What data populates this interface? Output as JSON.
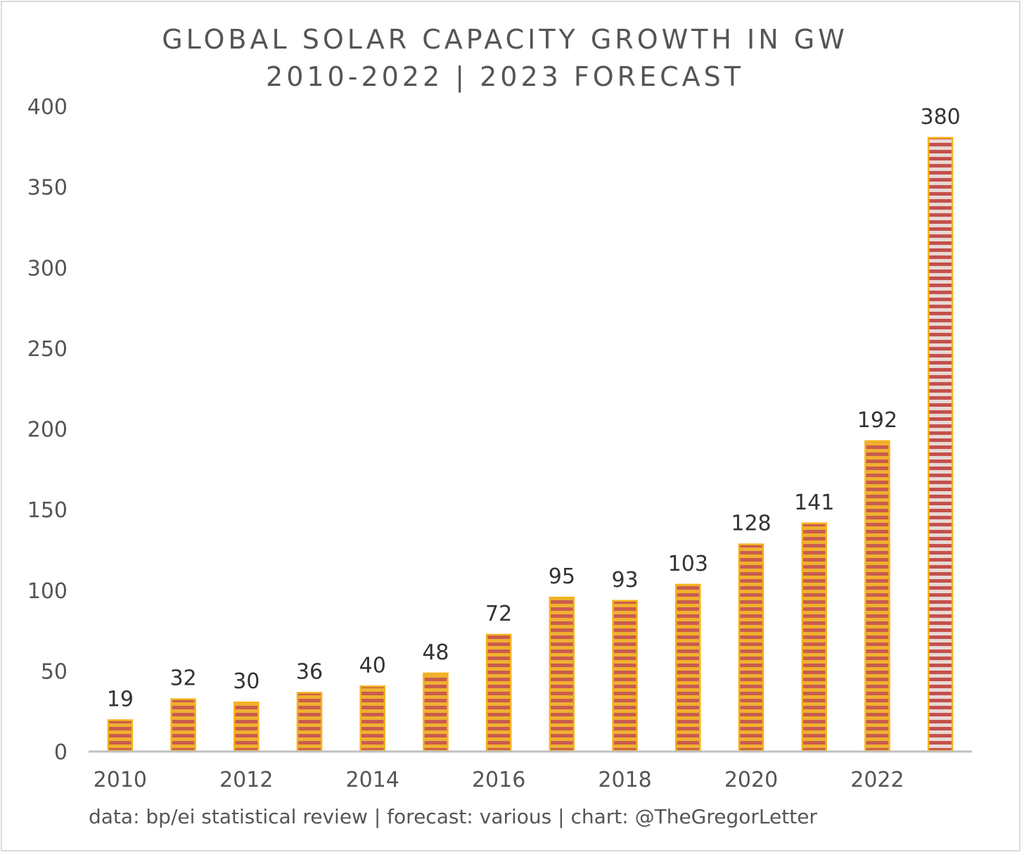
{
  "chart_data": {
    "type": "bar",
    "title": "GLOBAL SOLAR CAPACITY GROWTH IN GW",
    "subtitle": "2010-2022 | 2023 FORECAST",
    "categories": [
      "2010",
      "2011",
      "2012",
      "2013",
      "2014",
      "2015",
      "2016",
      "2017",
      "2018",
      "2019",
      "2020",
      "2021",
      "2022",
      "2023"
    ],
    "x_tick_labels": [
      "2010",
      "",
      "2012",
      "",
      "2014",
      "",
      "2016",
      "",
      "2018",
      "",
      "2020",
      "",
      "2022",
      ""
    ],
    "values": [
      19,
      32,
      30,
      36,
      40,
      48,
      72,
      95,
      93,
      103,
      128,
      141,
      192,
      380
    ],
    "data_labels": [
      "19",
      "32",
      "30",
      "36",
      "40",
      "48",
      "72",
      "95",
      "93",
      "103",
      "128",
      "141",
      "192",
      "380"
    ],
    "forecast_category": "2023",
    "ylim": [
      0,
      400
    ],
    "yticks": [
      0,
      50,
      100,
      150,
      200,
      250,
      300,
      350,
      400
    ],
    "xlabel": "",
    "ylabel": "",
    "grid": false,
    "legend": "none",
    "colors": {
      "bar_border": "#f5b21a",
      "bar_fill": "#f0b030",
      "bar_stripe": "#c95c4e",
      "forecast_fill": "#e8d8d4",
      "forecast_stripe": "#c4504a",
      "axis": "#bfbfbf",
      "text": "#555555",
      "label_text": "#333333"
    }
  },
  "footer": "data: bp/ei statistical review | forecast: various | chart: @TheGregorLetter"
}
